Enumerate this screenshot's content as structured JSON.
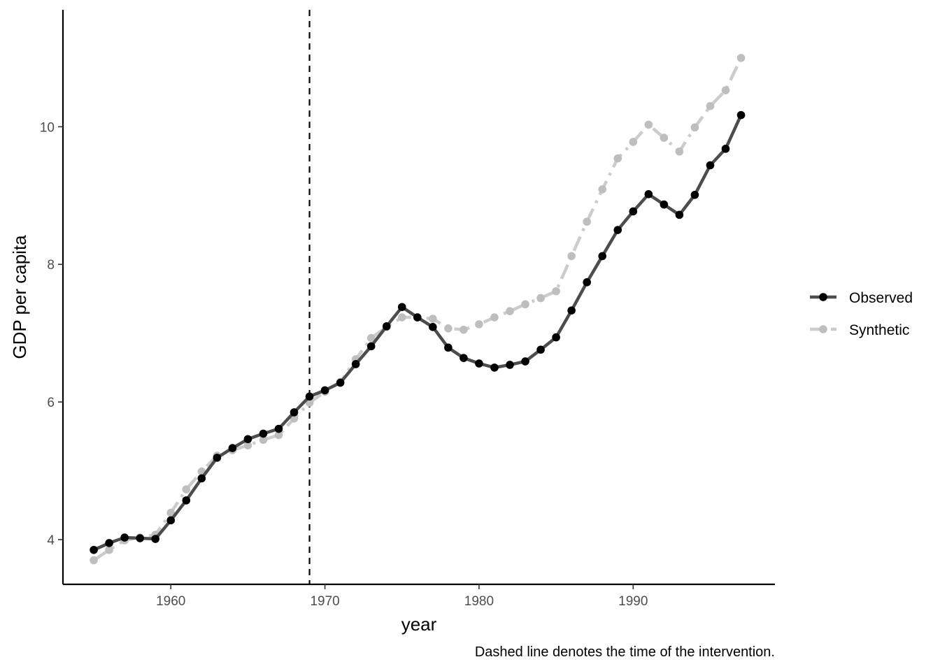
{
  "chart_data": {
    "type": "line",
    "title": "",
    "xlabel": "year",
    "ylabel": "GDP per capita",
    "caption": "Dashed line denotes the time of the intervention.",
    "xlim": [
      1953,
      1999.2
    ],
    "ylim": [
      3.35,
      11.7
    ],
    "xticks": [
      1960,
      1970,
      1980,
      1990
    ],
    "yticks": [
      4,
      6,
      8,
      10
    ],
    "grid": false,
    "legend_position": "right",
    "intervention_year": 1969,
    "x": [
      1955,
      1956,
      1957,
      1958,
      1959,
      1960,
      1961,
      1962,
      1963,
      1964,
      1965,
      1966,
      1967,
      1968,
      1969,
      1970,
      1971,
      1972,
      1973,
      1974,
      1975,
      1976,
      1977,
      1978,
      1979,
      1980,
      1981,
      1982,
      1983,
      1984,
      1985,
      1986,
      1987,
      1988,
      1989,
      1990,
      1991,
      1992,
      1993,
      1994,
      1995,
      1996,
      1997
    ],
    "series": [
      {
        "name": "Observed",
        "color": "#4d4d4d",
        "point_color": "#000000",
        "line_style": "solid",
        "values": [
          3.85,
          3.95,
          4.03,
          4.02,
          4.01,
          4.28,
          4.57,
          4.89,
          5.19,
          5.33,
          5.46,
          5.54,
          5.61,
          5.85,
          6.08,
          6.17,
          6.28,
          6.55,
          6.81,
          7.1,
          7.38,
          7.23,
          7.09,
          6.79,
          6.64,
          6.56,
          6.5,
          6.54,
          6.59,
          6.76,
          6.94,
          7.33,
          7.74,
          8.12,
          8.5,
          8.77,
          9.02,
          8.87,
          8.72,
          9.01,
          9.44,
          9.68,
          10.17
        ]
      },
      {
        "name": "Synthetic",
        "color": "#cccccc",
        "point_color": "#bebebe",
        "line_style": "dotdash",
        "values": [
          3.7,
          3.85,
          3.99,
          4.03,
          4.07,
          4.39,
          4.73,
          4.99,
          5.22,
          5.3,
          5.37,
          5.45,
          5.52,
          5.76,
          5.99,
          6.15,
          6.29,
          6.62,
          6.93,
          7.09,
          7.23,
          7.23,
          7.21,
          7.07,
          7.05,
          7.13,
          7.23,
          7.32,
          7.42,
          7.51,
          7.61,
          8.12,
          8.62,
          9.09,
          9.54,
          9.78,
          10.03,
          9.84,
          9.64,
          9.99,
          10.3,
          10.53,
          11.0
        ]
      }
    ]
  }
}
